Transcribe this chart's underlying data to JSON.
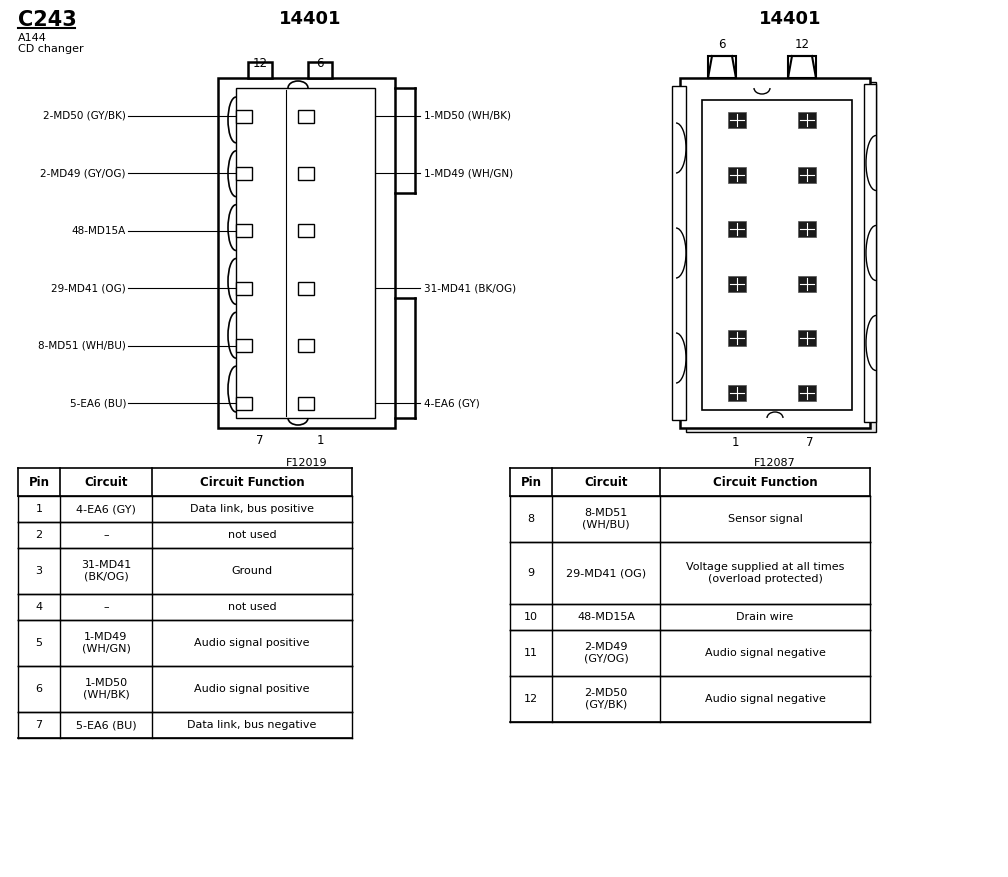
{
  "title": "C243",
  "subtitle1": "A144",
  "subtitle2": "CD changer",
  "connector_title": "14401",
  "connector_title2": "14401",
  "figcode1": "F12019",
  "figcode2": "F12087",
  "left_labels": [
    "2-MD50 (GY/BK)",
    "2-MD49 (GY/OG)",
    "48-MD15A",
    "29-MD41 (OG)",
    "8-MD51 (WH/BU)",
    "5-EA6 (BU)"
  ],
  "right_labels": [
    "1-MD50 (WH/BK)",
    "1-MD49 (WH/GN)",
    "",
    "31-MD41 (BK/OG)",
    "",
    "4-EA6 (GY)"
  ],
  "top_pins_left": "12",
  "top_pins_right": "6",
  "bottom_pins_left": "7",
  "bottom_pins_right": "1",
  "sock_top_left": "6",
  "sock_top_right": "12",
  "sock_bot_left": "1",
  "sock_bot_right": "7",
  "table1_data": [
    [
      "1",
      "4-EA6 (GY)",
      "Data link, bus positive"
    ],
    [
      "2",
      "–",
      "not used"
    ],
    [
      "3",
      "31-MD41\n(BK/OG)",
      "Ground"
    ],
    [
      "4",
      "–",
      "not used"
    ],
    [
      "5",
      "1-MD49\n(WH/GN)",
      "Audio signal positive"
    ],
    [
      "6",
      "1-MD50\n(WH/BK)",
      "Audio signal positive"
    ],
    [
      "7",
      "5-EA6 (BU)",
      "Data link, bus negative"
    ]
  ],
  "table2_data": [
    [
      "8",
      "8-MD51\n(WH/BU)",
      "Sensor signal"
    ],
    [
      "9",
      "29-MD41 (OG)",
      "Voltage supplied at all times\n(overload protected)"
    ],
    [
      "10",
      "48-MD15A",
      "Drain wire"
    ],
    [
      "11",
      "2-MD49\n(GY/OG)",
      "Audio signal negative"
    ],
    [
      "12",
      "2-MD50\n(GY/BK)",
      "Audio signal negative"
    ]
  ],
  "table_headers": [
    "Pin",
    "Circuit",
    "Circuit Function"
  ],
  "bg_color": "#ffffff"
}
